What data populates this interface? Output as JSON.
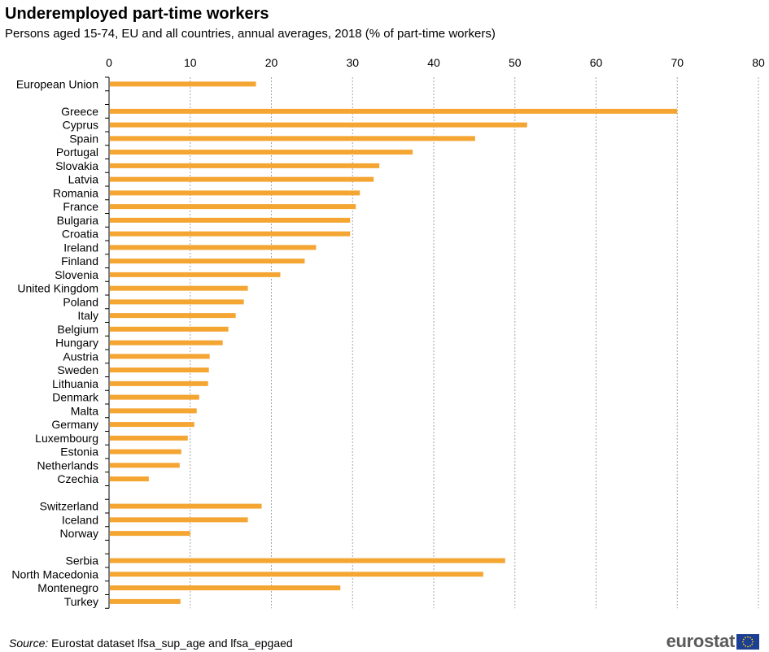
{
  "title": "Underemployed part-time workers",
  "subtitle": "Persons aged 15-74, EU and all countries, annual averages, 2018 (% of part-time workers)",
  "source_prefix": "Source:",
  "source_text": " Eurostat dataset lfsa_sup_age and lfsa_epgaed",
  "logo_text": "eurostat",
  "colors": {
    "bar": "#f4a532",
    "grid": "#a6a6a6",
    "axis": "#000000"
  },
  "chart_data": {
    "type": "bar",
    "orientation": "horizontal",
    "xlim": [
      0,
      80
    ],
    "xticks": [
      0,
      10,
      20,
      30,
      40,
      50,
      60,
      70,
      80
    ],
    "grid": true,
    "categories": [
      "European Union",
      "",
      "Greece",
      "Cyprus",
      "Spain",
      "Portugal",
      "Slovakia",
      "Latvia",
      "Romania",
      "France",
      "Bulgaria",
      "Croatia",
      "Ireland",
      "Finland",
      "Slovenia",
      "United Kingdom",
      "Poland",
      "Italy",
      "Belgium",
      "Hungary",
      "Austria",
      "Sweden",
      "Lithuania",
      "Denmark",
      "Malta",
      "Germany",
      "Luxembourg",
      "Estonia",
      "Netherlands",
      "Czechia",
      "",
      "Switzerland",
      "Iceland",
      "Norway",
      "",
      "Serbia",
      "North Macedonia",
      "Montenegro",
      "Turkey"
    ],
    "values": [
      18.1,
      null,
      70.0,
      51.5,
      45.1,
      37.4,
      33.3,
      32.6,
      30.9,
      30.4,
      29.7,
      29.7,
      25.5,
      24.1,
      21.1,
      17.1,
      16.6,
      15.6,
      14.7,
      14.0,
      12.4,
      12.3,
      12.2,
      11.1,
      10.8,
      10.5,
      9.7,
      8.9,
      8.7,
      4.9,
      null,
      18.8,
      17.1,
      10.0,
      null,
      48.8,
      46.1,
      28.5,
      8.8
    ]
  }
}
